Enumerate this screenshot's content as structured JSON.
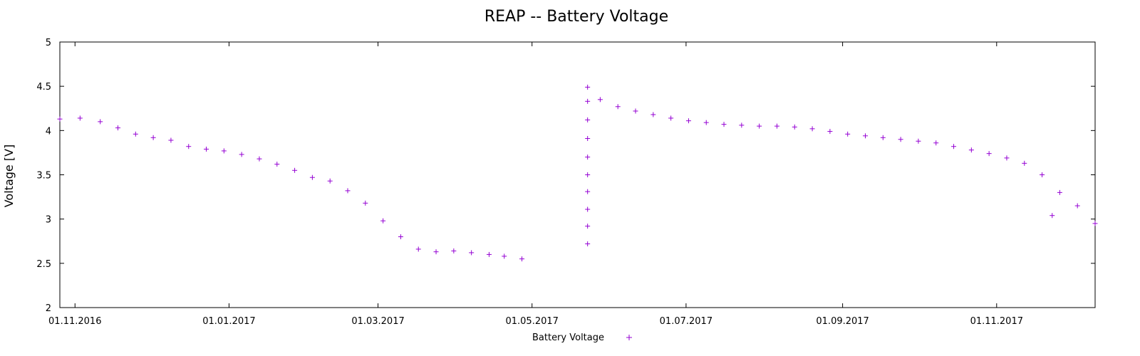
{
  "chart_data": {
    "type": "scatter",
    "title": "REAP -- Battery Voltage",
    "xlabel": "",
    "ylabel": "Voltage [V]",
    "ylim": [
      2,
      5
    ],
    "xlim": [
      "2016-10-26",
      "2017-12-10"
    ],
    "x_ticks": [
      "01.11.2016",
      "01.01.2017",
      "01.03.2017",
      "01.05.2017",
      "01.07.2017",
      "01.09.2017",
      "01.11.2017"
    ],
    "y_ticks": [
      "2",
      "2.5",
      "3",
      "3.5",
      "4",
      "4.5",
      "5"
    ],
    "legend": {
      "position": "bottom-center",
      "entries": [
        "Battery Voltage"
      ]
    },
    "grid": false,
    "series": [
      {
        "name": "Battery Voltage",
        "marker": "+",
        "color": "#9400d3",
        "points": [
          [
            "2016-10-26",
            4.13
          ],
          [
            "2016-11-03",
            4.14
          ],
          [
            "2016-11-11",
            4.1
          ],
          [
            "2016-11-18",
            4.03
          ],
          [
            "2016-11-25",
            3.96
          ],
          [
            "2016-12-02",
            3.92
          ],
          [
            "2016-12-09",
            3.89
          ],
          [
            "2016-12-16",
            3.82
          ],
          [
            "2016-12-23",
            3.79
          ],
          [
            "2016-12-30",
            3.77
          ],
          [
            "2017-01-06",
            3.73
          ],
          [
            "2017-01-13",
            3.68
          ],
          [
            "2017-01-20",
            3.62
          ],
          [
            "2017-01-27",
            3.55
          ],
          [
            "2017-02-03",
            3.47
          ],
          [
            "2017-02-10",
            3.43
          ],
          [
            "2017-02-17",
            3.32
          ],
          [
            "2017-02-24",
            3.18
          ],
          [
            "2017-03-03",
            2.98
          ],
          [
            "2017-03-10",
            2.8
          ],
          [
            "2017-03-17",
            2.66
          ],
          [
            "2017-03-24",
            2.63
          ],
          [
            "2017-03-31",
            2.64
          ],
          [
            "2017-04-07",
            2.62
          ],
          [
            "2017-04-14",
            2.6
          ],
          [
            "2017-04-20",
            2.58
          ],
          [
            "2017-04-27",
            2.55
          ],
          [
            "2017-05-23",
            2.72
          ],
          [
            "2017-05-23",
            2.92
          ],
          [
            "2017-05-23",
            3.11
          ],
          [
            "2017-05-23",
            3.31
          ],
          [
            "2017-05-23",
            3.5
          ],
          [
            "2017-05-23",
            3.7
          ],
          [
            "2017-05-23",
            3.91
          ],
          [
            "2017-05-23",
            4.12
          ],
          [
            "2017-05-23",
            4.33
          ],
          [
            "2017-05-23",
            4.49
          ],
          [
            "2017-05-28",
            4.35
          ],
          [
            "2017-06-04",
            4.27
          ],
          [
            "2017-06-11",
            4.22
          ],
          [
            "2017-06-18",
            4.18
          ],
          [
            "2017-06-25",
            4.14
          ],
          [
            "2017-07-02",
            4.11
          ],
          [
            "2017-07-09",
            4.09
          ],
          [
            "2017-07-16",
            4.07
          ],
          [
            "2017-07-23",
            4.06
          ],
          [
            "2017-07-30",
            4.05
          ],
          [
            "2017-08-06",
            4.05
          ],
          [
            "2017-08-13",
            4.04
          ],
          [
            "2017-08-20",
            4.02
          ],
          [
            "2017-08-27",
            3.99
          ],
          [
            "2017-09-03",
            3.96
          ],
          [
            "2017-09-10",
            3.94
          ],
          [
            "2017-09-17",
            3.92
          ],
          [
            "2017-09-24",
            3.9
          ],
          [
            "2017-10-01",
            3.88
          ],
          [
            "2017-10-08",
            3.86
          ],
          [
            "2017-10-15",
            3.82
          ],
          [
            "2017-10-22",
            3.78
          ],
          [
            "2017-10-29",
            3.74
          ],
          [
            "2017-11-05",
            3.69
          ],
          [
            "2017-11-12",
            3.63
          ],
          [
            "2017-11-19",
            3.5
          ],
          [
            "2017-11-23",
            3.04
          ],
          [
            "2017-11-26",
            3.3
          ],
          [
            "2017-12-03",
            3.15
          ],
          [
            "2017-12-10",
            2.95
          ]
        ]
      }
    ]
  }
}
